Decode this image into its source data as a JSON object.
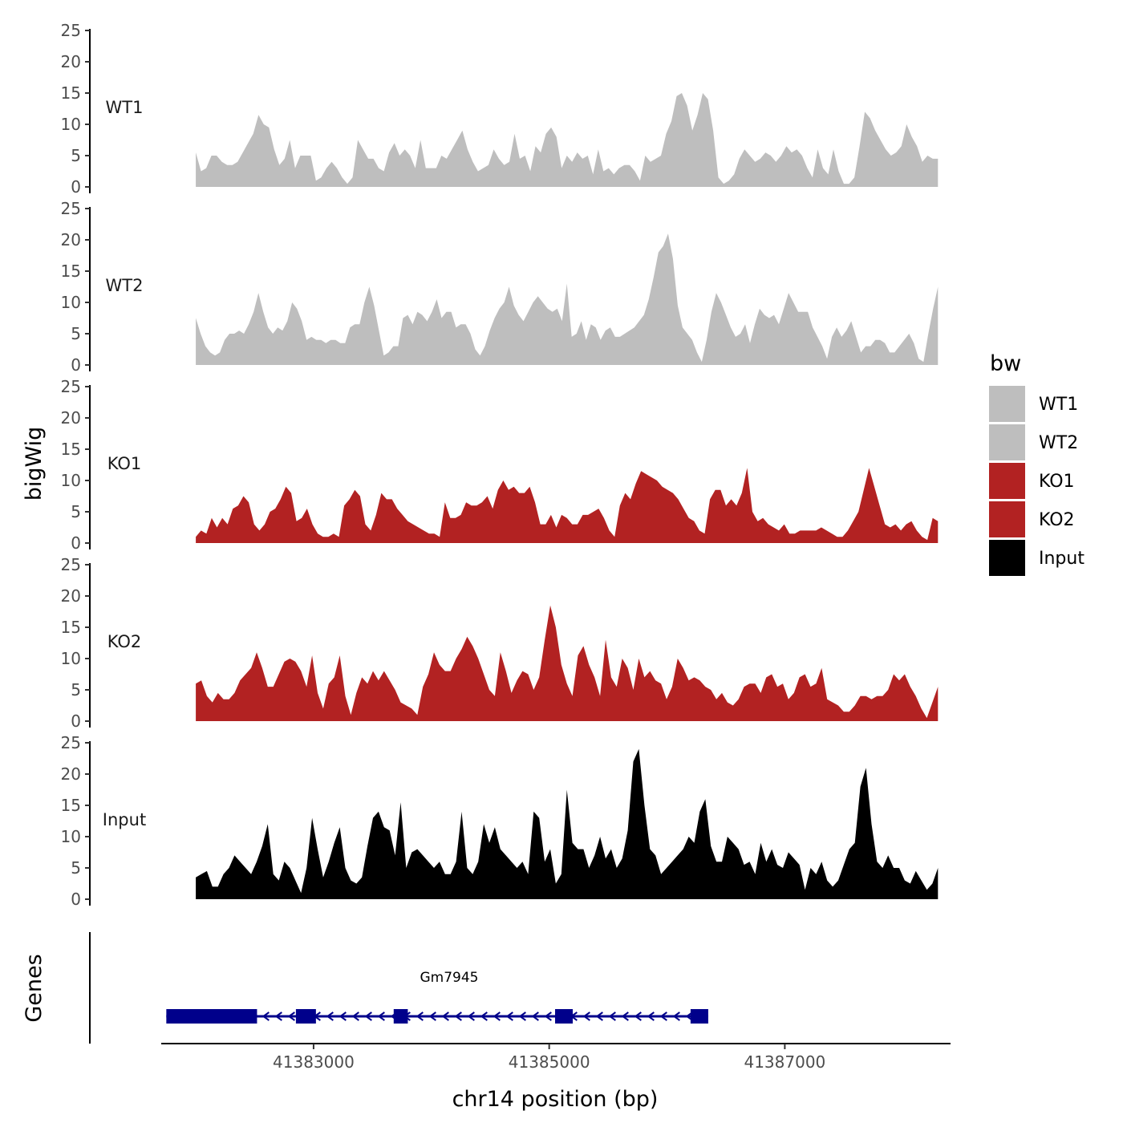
{
  "chart_data": {
    "type": "area",
    "ylabel": "bigWig",
    "genes_label": "Genes",
    "xlabel": "chr14 position (bp)",
    "xlim": [
      41381700,
      41388400
    ],
    "ylim": [
      0,
      25
    ],
    "yticks": [
      0,
      5,
      10,
      15,
      20,
      25
    ],
    "xticks": [
      41383000,
      41385000,
      41387000
    ],
    "xtick_labels": [
      "41383000",
      "41385000",
      "41387000"
    ],
    "legend": {
      "title": "bw",
      "placement": "right",
      "entries": [
        {
          "label": "WT1",
          "color": "#bebebe"
        },
        {
          "label": "WT2",
          "color": "#bebebe"
        },
        {
          "label": "KO1",
          "color": "#b22222"
        },
        {
          "label": "KO2",
          "color": "#b22222"
        },
        {
          "label": "Input",
          "color": "#000000"
        }
      ]
    },
    "tracks": [
      {
        "name": "WT1",
        "color": "#bebebe",
        "x_start": 41382000,
        "x_end": 41388300,
        "values": [
          5.5,
          2.5,
          3,
          5,
          5,
          4,
          3.5,
          3.5,
          4,
          5.5,
          7,
          8.5,
          11.5,
          10,
          9.5,
          6,
          3.5,
          4.5,
          7.5,
          3,
          5,
          5,
          5,
          1,
          1.5,
          3,
          4,
          3,
          1.5,
          0.5,
          1.5,
          7.5,
          6,
          4.5,
          4.5,
          3,
          2.5,
          5.5,
          7,
          5,
          6,
          5,
          3,
          7.5,
          3,
          3,
          3,
          5,
          4.5,
          6,
          7.5,
          9,
          6,
          4,
          2.5,
          3,
          3.5,
          6,
          4.5,
          3.5,
          4,
          8.5,
          4.5,
          5,
          2.5,
          6.5,
          5.5,
          8.5,
          9.5,
          8,
          3,
          5,
          4,
          5.5,
          4.5,
          5,
          2,
          6,
          2.5,
          3,
          2,
          3,
          3.5,
          3.5,
          2.5,
          1,
          5,
          4,
          4.5,
          5,
          8.5,
          10.5,
          14.5,
          15,
          13,
          9,
          11.5,
          15,
          14,
          9,
          1.5,
          0.5,
          1,
          2,
          4.5,
          6,
          5,
          4,
          4.5,
          5.5,
          5,
          4,
          5,
          6.5,
          5.5,
          6,
          5,
          3,
          1.5,
          6,
          3,
          2,
          6,
          2.5,
          0.5,
          0.5,
          1.5,
          6.5,
          12,
          11,
          9,
          7.5,
          6,
          5,
          5.5,
          6.5,
          10,
          8,
          6.5,
          4,
          5,
          4.5,
          4.5
        ]
      },
      {
        "name": "WT2",
        "color": "#bebebe",
        "x_start": 41382000,
        "x_end": 41388300,
        "values": [
          7.5,
          5,
          3,
          2,
          1.5,
          2,
          4,
          5,
          5,
          5.5,
          5,
          6.5,
          8.5,
          11.5,
          8.5,
          6,
          5,
          6,
          5.5,
          7,
          10,
          9,
          7,
          4,
          4.5,
          4,
          4,
          3.5,
          4,
          4,
          3.5,
          3.5,
          6,
          6.5,
          6.5,
          10,
          12.5,
          9.5,
          5.5,
          1.5,
          2,
          3,
          3,
          7.5,
          8,
          6.5,
          8.5,
          8,
          7,
          8.5,
          10.5,
          7.5,
          8.5,
          8.5,
          6,
          6.5,
          6.5,
          5,
          2.5,
          1.5,
          3,
          5.5,
          7.5,
          9,
          10,
          12.5,
          9.5,
          8,
          7,
          8.5,
          10,
          11,
          10,
          9,
          8.5,
          9,
          7,
          13,
          4.5,
          5,
          7,
          4,
          6.5,
          6,
          4,
          5.5,
          6,
          4.5,
          4.5,
          5,
          5.5,
          6,
          7,
          8,
          10.5,
          14,
          18,
          19,
          21,
          17,
          9.5,
          6,
          5,
          4,
          2,
          0.5,
          4,
          8.5,
          11.5,
          10,
          8,
          6,
          4.5,
          5,
          6.5,
          3.5,
          6.5,
          9,
          8,
          7.5,
          8,
          6.5,
          9,
          11.5,
          10,
          8.5,
          8.5,
          8.5,
          6,
          4.5,
          3,
          1,
          4.5,
          6,
          4.5,
          5.5,
          7,
          4.5,
          2,
          3,
          3,
          4,
          4,
          3.5,
          2,
          2,
          3,
          4,
          5,
          3.5,
          1,
          0.5,
          5,
          9,
          12.5
        ]
      },
      {
        "name": "KO1",
        "color": "#b22222",
        "x_start": 41382000,
        "x_end": 41388300,
        "values": [
          1,
          2,
          1.5,
          4,
          2.5,
          4,
          3,
          5.5,
          6,
          7.5,
          6.5,
          3,
          2,
          3,
          5,
          5.5,
          7,
          9,
          8,
          3.5,
          4,
          5.5,
          3,
          1.5,
          1,
          1,
          1.5,
          1,
          6,
          7,
          8.5,
          7.5,
          3,
          2,
          4.5,
          8,
          7,
          7,
          5.5,
          4.5,
          3.5,
          3,
          2.5,
          2,
          1.5,
          1.5,
          1,
          6.5,
          4,
          4,
          4.5,
          6.5,
          6,
          6,
          6.5,
          7.5,
          5.5,
          8.5,
          10,
          8.5,
          9,
          8,
          8,
          9,
          6.5,
          3,
          3,
          4.5,
          2.5,
          4.5,
          4,
          3,
          3,
          4.5,
          4.5,
          5,
          5.5,
          4,
          2,
          1,
          6,
          8,
          7,
          9.5,
          11.5,
          11,
          10.5,
          10,
          9,
          8.5,
          8,
          7,
          5.5,
          4,
          3.5,
          2,
          1.5,
          7,
          8.5,
          8.5,
          6,
          7,
          6,
          8,
          12,
          5,
          3.5,
          4,
          3,
          2.5,
          2,
          3,
          1.5,
          1.5,
          2,
          2,
          2,
          2,
          2.5,
          2,
          1.5,
          1,
          1,
          2,
          3.5,
          5,
          8.5,
          12,
          9,
          6,
          3,
          2.5,
          3,
          2,
          3,
          3.5,
          2,
          1,
          0.5,
          4,
          3.5
        ]
      },
      {
        "name": "KO2",
        "color": "#b22222",
        "x_start": 41382000,
        "x_end": 41388300,
        "values": [
          6,
          6.5,
          4,
          3,
          4.5,
          3.5,
          3.5,
          4.5,
          6.5,
          7.5,
          8.5,
          11,
          8.5,
          5.5,
          5.5,
          7.5,
          9.5,
          10,
          9.5,
          8,
          5.5,
          10.5,
          4.5,
          2,
          6,
          7,
          10.5,
          4,
          1,
          4.5,
          7,
          6,
          8,
          6.5,
          8,
          6.5,
          5,
          3,
          2.5,
          2,
          1,
          5.5,
          7.5,
          11,
          9,
          8,
          8,
          10,
          11.5,
          13.5,
          12,
          10,
          7.5,
          5,
          4,
          11,
          8,
          4.5,
          6.5,
          8,
          7.5,
          5,
          7,
          13,
          18.5,
          15,
          9,
          6,
          4,
          10.5,
          12,
          9,
          7,
          4,
          13,
          7,
          5.5,
          10,
          8.5,
          5,
          10,
          7,
          8,
          6.5,
          6,
          3.5,
          5.5,
          10,
          8.5,
          6.5,
          7,
          6.5,
          5.5,
          5,
          3.5,
          4.5,
          3,
          2.5,
          3.5,
          5.5,
          6,
          6,
          4.5,
          7,
          7.5,
          5.5,
          6,
          3.5,
          4.5,
          7,
          7.5,
          5.5,
          6,
          8.5,
          3.5,
          3,
          2.5,
          1.5,
          1.5,
          2.5,
          4,
          4,
          3.5,
          4,
          4,
          5,
          7.5,
          6.5,
          7.5,
          5.5,
          4,
          2,
          0.5,
          3,
          5.5
        ]
      },
      {
        "name": "Input",
        "color": "#000000",
        "x_start": 41382000,
        "x_end": 41388300,
        "values": [
          3.5,
          4,
          4.5,
          2,
          2,
          4,
          5,
          7,
          6,
          5,
          4,
          6,
          8.5,
          12,
          4,
          3,
          6,
          5,
          3,
          1,
          5,
          13,
          8,
          3.5,
          6,
          9,
          11.5,
          5,
          3,
          2.5,
          3.5,
          8.5,
          13,
          14,
          11.5,
          11,
          7,
          15.5,
          5,
          7.5,
          8,
          7,
          6,
          5,
          6,
          4,
          4,
          6,
          14,
          5,
          4,
          6,
          12,
          9,
          11.5,
          8,
          7,
          6,
          5,
          6,
          4,
          14,
          13,
          6,
          8,
          2.5,
          4,
          17.5,
          9,
          8,
          8,
          5,
          7,
          10,
          6.5,
          8,
          5,
          6.5,
          11,
          22,
          24,
          15,
          8,
          7,
          4,
          5,
          6,
          7,
          8,
          10,
          9,
          14,
          16,
          8.5,
          6,
          6,
          10,
          9,
          8,
          5.5,
          6,
          4,
          9,
          6,
          8,
          5.5,
          5,
          7.5,
          6.5,
          5.5,
          1.5,
          5,
          4,
          6,
          3,
          2,
          3,
          5.5,
          8,
          9,
          18,
          21,
          12,
          6,
          5,
          7,
          5,
          5,
          3,
          2.5,
          4.5,
          3,
          1.5,
          2.5,
          5
        ]
      }
    ],
    "gene_track": {
      "gene_name": "Gm7945",
      "strand": "-",
      "color": "#00008b",
      "line_start": 41381750,
      "line_end": 41386350,
      "exons": [
        [
          41381750,
          41382520
        ],
        [
          41382850,
          41383020
        ],
        [
          41383680,
          41383800
        ],
        [
          41385050,
          41385200
        ],
        [
          41386200,
          41386350
        ]
      ]
    }
  }
}
